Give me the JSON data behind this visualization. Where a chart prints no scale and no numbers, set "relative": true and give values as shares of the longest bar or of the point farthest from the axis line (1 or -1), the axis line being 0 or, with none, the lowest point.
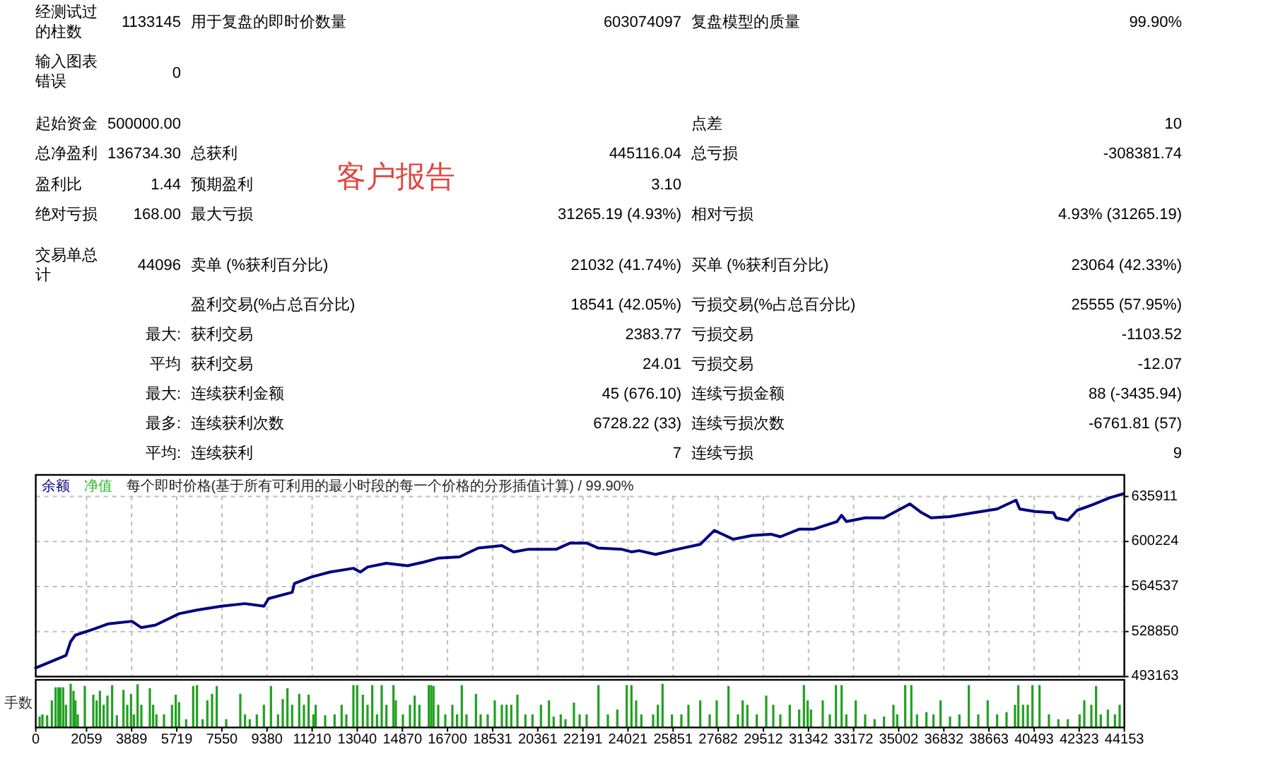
{
  "chart_data": [
    {
      "type": "other",
      "annotations": [
        "经测试过的柱数",
        "1133145",
        "用于复盘的即时价数量",
        "603074097",
        "复盘模型的质量",
        "99.90%",
        "输入图表错误",
        "0",
        "起始资金",
        "500000.00",
        "点差",
        "10",
        "总净盈利",
        "136734.30",
        "总获利",
        "445116.04",
        "总亏损",
        "-308381.74",
        "盈利比",
        "1.44",
        "预期盈利",
        "3.10",
        "客户报告",
        "绝对亏损",
        "168.00",
        "最大亏损",
        "31265.19 (4.93%)",
        "相对亏损",
        "4.93% (31265.19)",
        "交易单总计",
        "44096",
        "卖单 (%获利百分比)",
        "21032 (41.74%)",
        "买单 (%获利百分比)",
        "23064 (42.33%)",
        "盈利交易(%占总百分比)",
        "18541 (42.05%)",
        "亏损交易(%占总百分比)",
        "25555 (57.95%)",
        "最大:",
        "获利交易",
        "2383.77",
        "亏损交易",
        "-1103.52",
        "平均",
        "获利交易",
        "24.01",
        "亏损交易",
        "-12.07",
        "最大:",
        "连续获利金额",
        "45 (676.10)",
        "连续亏损金额",
        "88 (-3435.94)",
        "最多:",
        "连续获利次数",
        "6728.22 (33)",
        "连续亏损次数",
        "-6761.81 (57)",
        "平均:",
        "连续获利",
        "7",
        "连续亏损",
        "9"
      ]
    },
    {
      "type": "line",
      "title": "每个即时价格(基于所有可利用的最小时段的每一个价格的分形插值计算) / 99.90%",
      "legend": "top left",
      "grid": true,
      "tick_labels": "y",
      "x": [
        0,
        1227,
        1416,
        1606,
        2374,
        2947,
        3899,
        4283,
        4857,
        5814,
        6577,
        7534,
        8486,
        9255,
        9444,
        10401,
        10493,
        11164,
        11927,
        12884,
        13171,
        13458,
        14220,
        15080,
        15751,
        16325,
        17185,
        17947,
        18905,
        19381,
        19954,
        21101,
        21675,
        22345,
        22821,
        23779,
        24163,
        24467,
        25138,
        25998,
        26950,
        27523,
        28292,
        29054,
        29817,
        30201,
        30964,
        31537,
        32495,
        32684,
        32879,
        33641,
        34404,
        34788,
        35459,
        35935,
        36319,
        37082,
        38039,
        38991,
        39760,
        39909,
        40522,
        41285,
        41382,
        41858,
        42242,
        42816,
        43578,
        44117
      ],
      "series": [
        {
          "name": "余额",
          "color": "#000080",
          "values": [
            500000,
            510000,
            521000,
            526000,
            531000,
            535000,
            537000,
            532000,
            534000,
            543000,
            546000,
            549000,
            551000,
            549000,
            555000,
            560000,
            567000,
            572000,
            576000,
            579000,
            576000,
            580000,
            583000,
            581000,
            584000,
            587000,
            588000,
            595000,
            597000,
            592000,
            594000,
            594000,
            599000,
            599000,
            595000,
            594000,
            592000,
            593000,
            590000,
            594000,
            598000,
            609000,
            602000,
            605000,
            606000,
            604000,
            610000,
            610000,
            616000,
            621000,
            616000,
            619000,
            619000,
            623000,
            630000,
            623000,
            619000,
            620000,
            623000,
            626000,
            633000,
            626000,
            624000,
            623000,
            619000,
            617000,
            625000,
            629000,
            635000,
            638000
          ]
        },
        {
          "name": "净值",
          "color": "#2db82d",
          "values": [
            null,
            null,
            null,
            null,
            null,
            null,
            null,
            null,
            null,
            null,
            null,
            null,
            null,
            null,
            null,
            null,
            null,
            null,
            null,
            null,
            null,
            null,
            null,
            null,
            null,
            null,
            null,
            null,
            null,
            null,
            null,
            null,
            null,
            null,
            null,
            null,
            null,
            null,
            null,
            null,
            null,
            null,
            null,
            null,
            null,
            null,
            null,
            null,
            null,
            null,
            null,
            null,
            null,
            null,
            null,
            null,
            null,
            null,
            null,
            null,
            null,
            null,
            null,
            null,
            null,
            null,
            null,
            null,
            null,
            null
          ]
        }
      ],
      "xlim": [
        0,
        44153
      ],
      "xticks": [
        0,
        2059,
        3889,
        5719,
        7550,
        9380,
        11210,
        13040,
        14870,
        16700,
        18531,
        20361,
        22191,
        24021,
        25851,
        27682,
        29512,
        31342,
        33172,
        35002,
        36832,
        38663,
        40493,
        42323,
        44153
      ],
      "ylim": [
        493163,
        653000
      ],
      "yticks": [
        493163,
        528850,
        564537,
        600224,
        635911
      ]
    },
    {
      "type": "bar",
      "title": "手数",
      "relative": true,
      "color": "#22a022",
      "xlim": [
        0,
        44153
      ],
      "xticks": [
        0,
        2059,
        3889,
        5719,
        7550,
        9380,
        11210,
        13040,
        14870,
        16700,
        18531,
        20361,
        22191,
        24021,
        25851,
        27682,
        29512,
        31342,
        33172,
        35002,
        36832,
        38663,
        40493,
        42323,
        44153
      ],
      "x": [
        155,
        270,
        461,
        652,
        805,
        919,
        996,
        1111,
        1225,
        1416,
        1531,
        1608,
        1703,
        1990,
        2334,
        2468,
        2601,
        2754,
        2907,
        3098,
        3289,
        3557,
        3710,
        3863,
        3977,
        4130,
        4283,
        4627,
        4761,
        4895,
        5201,
        5525,
        5678,
        5812,
        6099,
        6386,
        6539,
        6768,
        6959,
        7150,
        7341,
        7724,
        8297,
        8488,
        8679,
        8966,
        9253,
        9539,
        9826,
        10017,
        10208,
        10399,
        10686,
        10877,
        11068,
        11260,
        11355,
        11737,
        12120,
        12406,
        12597,
        12884,
        13037,
        13266,
        13457,
        13648,
        13840,
        14031,
        14222,
        14509,
        14604,
        14891,
        15178,
        15369,
        15560,
        15942,
        16038,
        16133,
        16324,
        16611,
        16898,
        17089,
        17280,
        17471,
        17854,
        18045,
        18331,
        18618,
        18905,
        19096,
        19287,
        19536,
        19860,
        20147,
        20491,
        20816,
        21007,
        21294,
        21485,
        21829,
        22059,
        22345,
        22823,
        23205,
        23588,
        23970,
        24161,
        24352,
        24563,
        25040,
        25232,
        25423,
        25805,
        26187,
        26474,
        26952,
        27334,
        27620,
        28098,
        28481,
        28672,
        28863,
        29245,
        29628,
        29914,
        30201,
        30583,
        30965,
        31157,
        31309,
        31443,
        31921,
        32208,
        32456,
        32686,
        32877,
        33259,
        33641,
        34024,
        34406,
        34788,
        34941,
        35266,
        35514,
        35744,
        36126,
        36412,
        36699,
        37082,
        37464,
        37846,
        38228,
        38611,
        38993,
        39375,
        39719,
        39853,
        40045,
        40235,
        40426,
        40713,
        41095,
        41478,
        41860,
        42338,
        42529,
        42816,
        43007,
        43198,
        43485,
        43772,
        43963
      ],
      "values": [
        0.25,
        0.3,
        0.28,
        0.62,
        0.92,
        0.92,
        0.92,
        0.92,
        0.52,
        1,
        0.84,
        0.62,
        0.3,
        0.95,
        0.75,
        0.62,
        0.84,
        0.52,
        0.73,
        0.97,
        0.28,
        0.86,
        0.52,
        0.77,
        0.3,
        0.99,
        0.52,
        0.9,
        0.52,
        0.3,
        0.3,
        0.52,
        0.75,
        0.58,
        0.19,
        0.95,
        0.97,
        0.19,
        0.62,
        0.77,
        0.95,
        0.19,
        0.77,
        0.3,
        0.19,
        0.3,
        0.52,
        0.95,
        0.3,
        0.65,
        0.9,
        0.52,
        0.77,
        0.52,
        0.75,
        0.3,
        0.52,
        0.28,
        0.3,
        0.52,
        0.3,
        0.97,
        0.97,
        0.75,
        0.52,
        0.97,
        0.3,
        0.97,
        0.52,
        0.97,
        0.62,
        0.3,
        0.52,
        0.73,
        0.52,
        0.97,
        0.97,
        0.95,
        0.52,
        0.3,
        0.52,
        0.3,
        0.97,
        0.3,
        0.77,
        0.3,
        0.3,
        0.62,
        0.52,
        0.52,
        0.52,
        0.75,
        0.3,
        0.3,
        0.52,
        0.62,
        0.25,
        0.3,
        0.19,
        0.57,
        0.3,
        0.3,
        0.97,
        0.3,
        0.41,
        0.97,
        0.97,
        0.62,
        0.3,
        0.3,
        0.52,
        1,
        0.3,
        0.3,
        0.52,
        0.62,
        0.3,
        0.62,
        0.95,
        0.3,
        0.62,
        0.52,
        0.3,
        0.73,
        0.52,
        0.3,
        0.52,
        0.41,
        0.97,
        0.62,
        0.41,
        0.62,
        0.3,
        0.97,
        0.97,
        0.3,
        0.62,
        0.3,
        0.19,
        0.25,
        0.52,
        0.3,
        0.97,
        0.97,
        0.3,
        0.35,
        0.3,
        0.62,
        0.25,
        0.3,
        0.97,
        0.3,
        0.62,
        0.3,
        0.35,
        0.52,
        0.97,
        0.52,
        0.52,
        0.97,
        0.97,
        0.3,
        0.19,
        0.19,
        0.3,
        0.62,
        0.52,
        0.95,
        0.3,
        0.41,
        0.3,
        0.52
      ]
    }
  ]
}
